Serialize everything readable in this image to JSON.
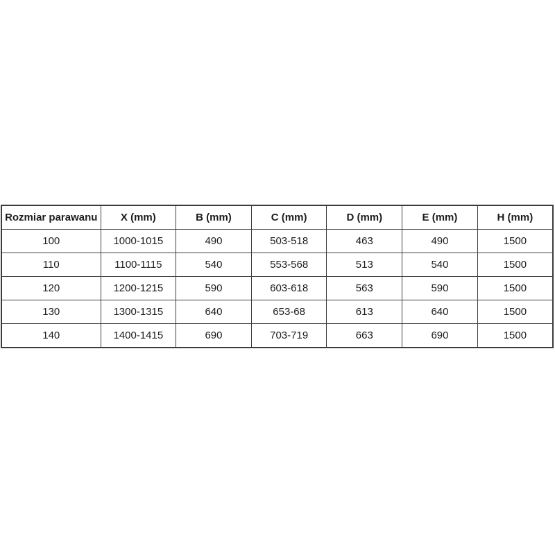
{
  "chart_data": {
    "type": "table",
    "columns": [
      "Rozmiar parawanu",
      "X (mm)",
      "B (mm)",
      "C (mm)",
      "D (mm)",
      "E (mm)",
      "H (mm)"
    ],
    "rows": [
      [
        "100",
        "1000-1015",
        "490",
        "503-518",
        "463",
        "490",
        "1500"
      ],
      [
        "110",
        "1100-1115",
        "540",
        "553-568",
        "513",
        "540",
        "1500"
      ],
      [
        "120",
        "1200-1215",
        "590",
        "603-618",
        "563",
        "590",
        "1500"
      ],
      [
        "130",
        "1300-1315",
        "640",
        "653-68",
        "613",
        "640",
        "1500"
      ],
      [
        "140",
        "1400-1415",
        "690",
        "703-719",
        "663",
        "690",
        "1500"
      ]
    ]
  },
  "colors": {
    "border": "#3c3c3c",
    "text": "#1c1c1c",
    "background": "#ffffff"
  }
}
